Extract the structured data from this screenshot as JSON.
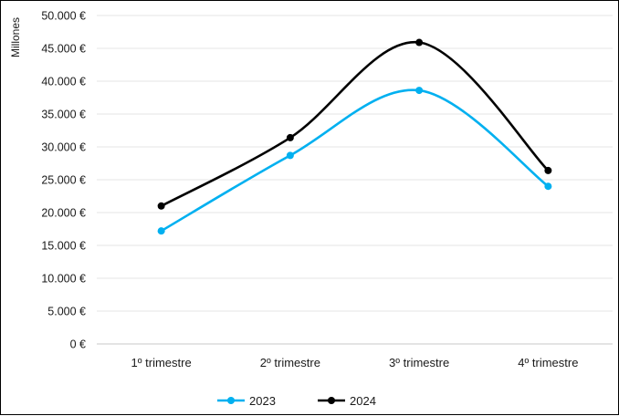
{
  "chart_data": {
    "type": "line",
    "ylabel": "Millones",
    "categories": [
      "1º trimestre",
      "2º trimestre",
      "3º trimestre",
      "4º trimestre"
    ],
    "ylim": [
      0,
      50000
    ],
    "yticks": [
      0,
      5000,
      10000,
      15000,
      20000,
      25000,
      30000,
      35000,
      40000,
      45000,
      50000
    ],
    "ytick_labels": [
      "0 €",
      "5.000 €",
      "10.000 €",
      "15.000 €",
      "20.000 €",
      "25.000 €",
      "30.000 €",
      "35.000 €",
      "40.000 €",
      "45.000 €",
      "50.000 €"
    ],
    "grid": true,
    "smooth": true,
    "legend_position": "bottom",
    "series": [
      {
        "name": "2023",
        "color": "#00b0f0",
        "values": [
          17200,
          28700,
          38600,
          24000
        ]
      },
      {
        "name": "2024",
        "color": "#000000",
        "values": [
          21000,
          31400,
          45900,
          26400
        ]
      }
    ]
  }
}
